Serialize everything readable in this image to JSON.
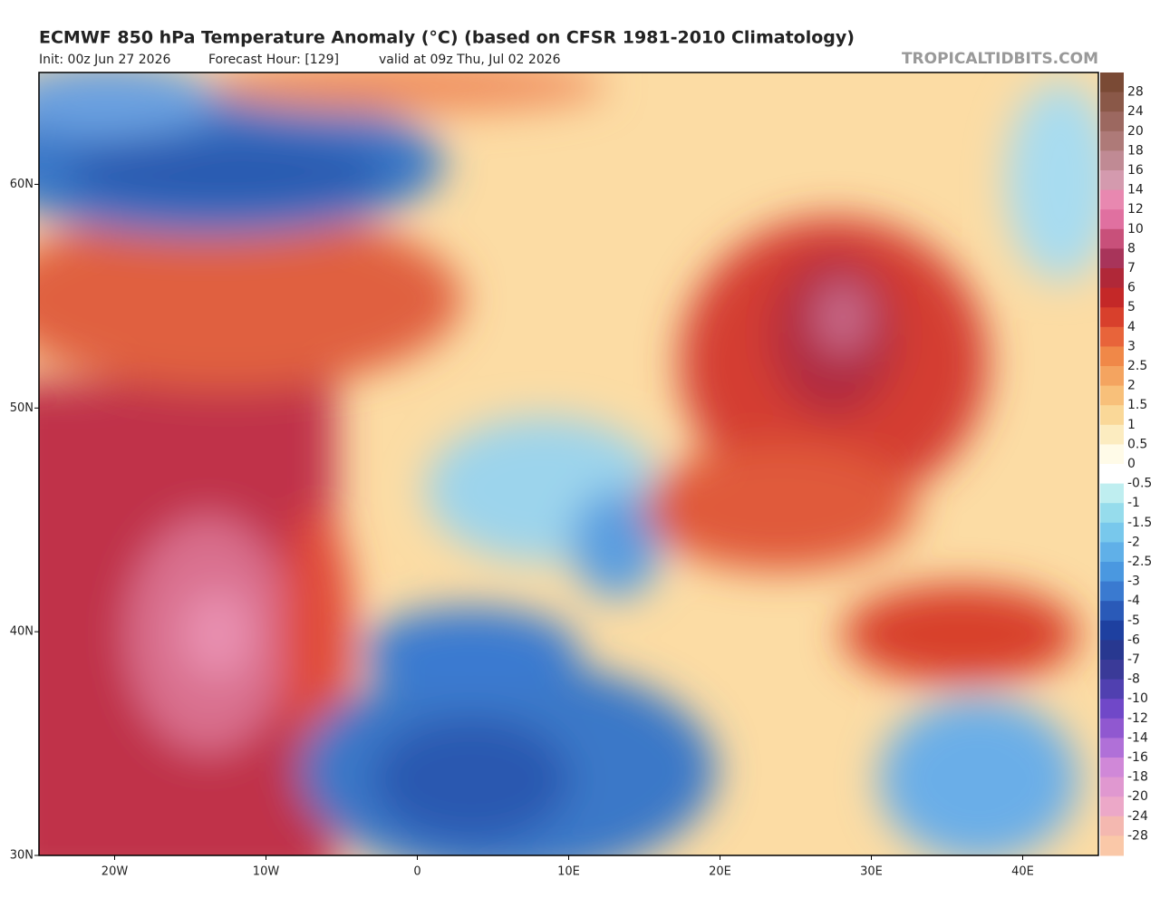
{
  "header": {
    "title": "ECMWF 850 hPa Temperature Anomaly (°C) (based on CFSR 1981-2010 Climatology)",
    "init": "Init: 00z Jun 27 2026",
    "forecast_hour": "Forecast Hour: [129]",
    "valid": "valid at 09z Thu, Jul 02 2026",
    "credit": "TROPICALTIDBITS.COM"
  },
  "map": {
    "xlim": [
      -25,
      45
    ],
    "ylim": [
      30,
      65
    ],
    "xticks": [
      {
        "value": -20,
        "label": "20W"
      },
      {
        "value": -10,
        "label": "10W"
      },
      0,
      {
        "value": 10,
        "label": "10E"
      },
      {
        "value": 20,
        "label": "20E"
      },
      {
        "value": 30,
        "label": "30E"
      },
      {
        "value": 40,
        "label": "40E"
      }
    ],
    "yticks": [
      {
        "value": 60,
        "label": "60N"
      },
      {
        "value": 50,
        "label": "50N"
      },
      {
        "value": 40,
        "label": "40N"
      },
      {
        "value": 30,
        "label": "30N"
      }
    ]
  },
  "colorbar": {
    "labels": [
      28,
      24,
      20,
      18,
      16,
      14,
      12,
      10,
      8,
      7,
      6,
      5,
      4,
      3,
      2.5,
      2,
      1.5,
      1,
      0.5,
      0,
      -0.5,
      -1,
      -1.5,
      -2,
      -2.5,
      -3,
      -4,
      -5,
      -6,
      -7,
      -8,
      -10,
      -12,
      -14,
      -16,
      -18,
      -20,
      -24,
      -28
    ],
    "colors": [
      "#7a4a35",
      "#8a5848",
      "#9c6860",
      "#ae7a78",
      "#c08a94",
      "#d49aae",
      "#e888b0",
      "#e070a0",
      "#c8507a",
      "#a8345a",
      "#b02838",
      "#c42828",
      "#d8402c",
      "#e8643a",
      "#f08848",
      "#f4a460",
      "#f8c07a",
      "#fad898",
      "#fcecc0",
      "#fffbe8",
      "#ffffff",
      "#bfeef0",
      "#96dcec",
      "#78c8ec",
      "#60b0e8",
      "#4a98e0",
      "#3a7ad0",
      "#2a5ab8",
      "#1e40a0",
      "#283890",
      "#3a3a98",
      "#5040b0",
      "#7048c8",
      "#9058d0",
      "#b070d8",
      "#d088d8",
      "#e098d0",
      "#eca8c8",
      "#f4b8b0",
      "#fac8a8"
    ]
  }
}
